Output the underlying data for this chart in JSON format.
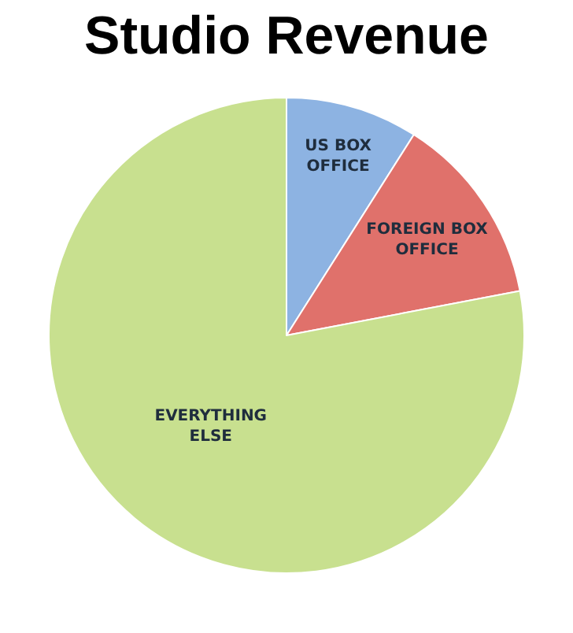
{
  "chart_data": {
    "type": "pie",
    "title": "Studio Revenue",
    "categories": [
      "US BOX OFFICE",
      "FOREIGN BOX OFFICE",
      "EVERYTHING ELSE"
    ],
    "values": [
      9,
      13,
      78
    ],
    "colors": [
      "#8db3e2",
      "#e0716b",
      "#c8e08f"
    ],
    "legend": false
  }
}
